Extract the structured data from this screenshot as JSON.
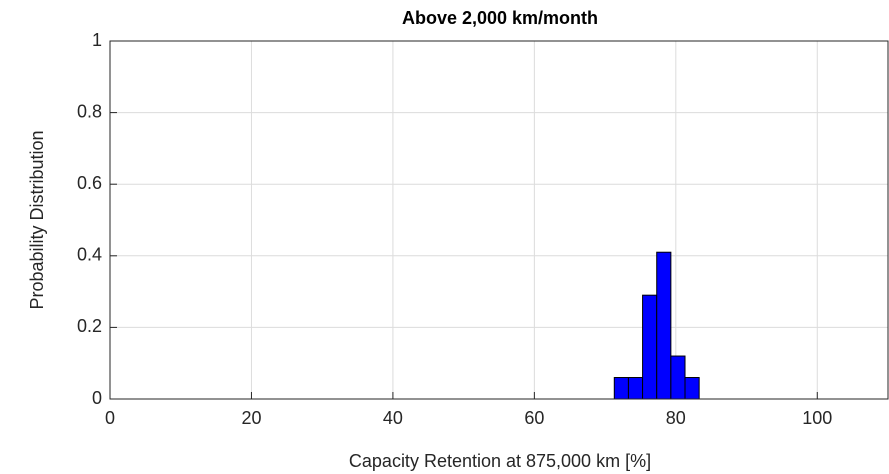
{
  "chart_data": {
    "type": "histogram",
    "title": "Above 2,000 km/month",
    "xlabel": "Capacity Retention at 875,000 km [%]",
    "ylabel": "Probability Distribution",
    "bins": [
      71.3,
      73.3,
      75.3,
      77.3,
      79.3,
      81.3,
      83.3
    ],
    "counts": [
      0.06,
      0.06,
      0.29,
      0.41,
      0.12,
      0.06
    ],
    "color": "#0000ff",
    "edgecolor": "#000000",
    "xlim": [
      0,
      110
    ],
    "xticks": [
      0,
      20,
      40,
      60,
      80,
      100
    ],
    "ylim": [
      0,
      1
    ],
    "yticks": [
      0,
      0.2,
      0.4,
      0.6,
      0.8,
      1
    ],
    "grid": true
  }
}
